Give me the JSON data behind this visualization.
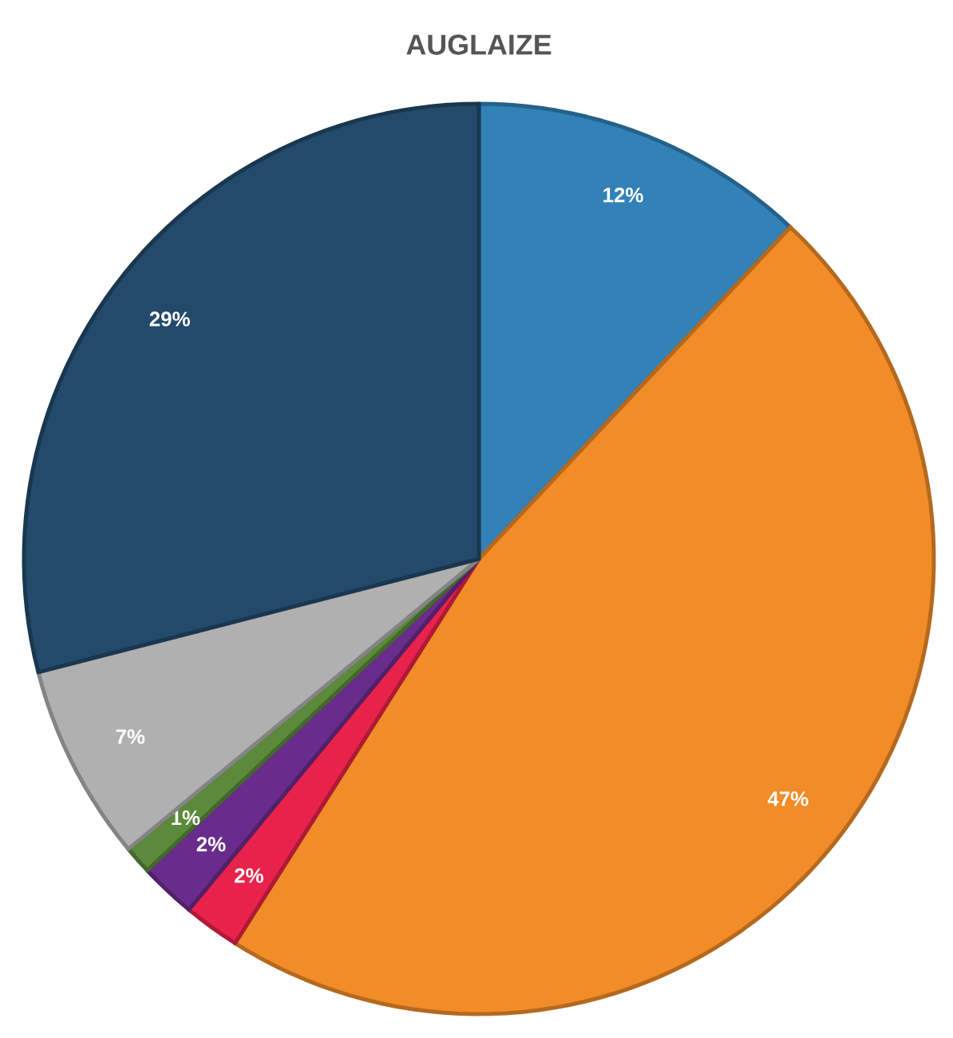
{
  "chart_data": {
    "type": "pie",
    "title": "AUGLAIZE",
    "categories": [
      null,
      null,
      null,
      null,
      null,
      null,
      null
    ],
    "values": [
      12,
      47,
      2,
      2,
      1,
      7,
      29
    ],
    "colors": [
      "#3282b8",
      "#f28c28",
      "#e8224a",
      "#6a2c8c",
      "#5a8a3a",
      "#b0b0b0",
      "#234a6a"
    ],
    "value_labels": [
      "12%",
      "47%",
      "2%",
      "2%",
      "1%",
      "7%",
      "29%"
    ]
  }
}
